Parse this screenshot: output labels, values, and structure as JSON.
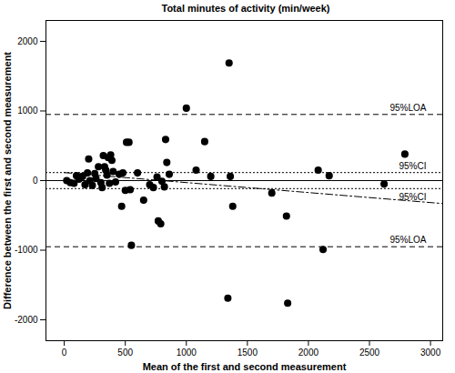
{
  "chart_data": {
    "type": "scatter",
    "title": "Total minutes of activity (min/week)",
    "x_label": "Mean of the first and second measurement",
    "y_label": "Difference between the first and second measurement",
    "x": [
      20,
      50,
      80,
      100,
      120,
      150,
      170,
      190,
      200,
      210,
      230,
      250,
      260,
      280,
      300,
      310,
      320,
      330,
      340,
      350,
      360,
      370,
      380,
      390,
      400,
      420,
      450,
      470,
      480,
      500,
      510,
      530,
      540,
      550,
      600,
      650,
      700,
      730,
      760,
      770,
      790,
      800,
      820,
      830,
      840,
      860,
      1000,
      1080,
      1150,
      1200,
      1340,
      1350,
      1360,
      1380,
      1700,
      1820,
      1830,
      2080,
      2120,
      2170,
      2620,
      2790
    ],
    "values": [
      0,
      -30,
      -40,
      70,
      20,
      60,
      -60,
      110,
      310,
      0,
      -70,
      100,
      30,
      200,
      -30,
      -100,
      360,
      200,
      150,
      80,
      330,
      -40,
      370,
      290,
      130,
      -20,
      90,
      -370,
      110,
      -140,
      550,
      550,
      -130,
      -930,
      110,
      -280,
      -60,
      -100,
      50,
      -580,
      -620,
      -10,
      -90,
      590,
      260,
      90,
      1040,
      150,
      560,
      60,
      -1690,
      1690,
      60,
      -370,
      -180,
      -510,
      -1760,
      150,
      -990,
      70,
      -50,
      380
    ],
    "color": "#000000",
    "marker": "circle",
    "reference_lines": [
      {
        "value": 950,
        "label": "95%LOA",
        "line_style": "dashed"
      },
      {
        "value": 115,
        "label": "95%CI",
        "line_style": "dotted"
      },
      {
        "value": 0,
        "line_style": "solid"
      },
      {
        "value": -115,
        "label": "95%CI",
        "line_style": "dotted"
      },
      {
        "value": -950,
        "label": "95%LOA",
        "line_style": "dashed"
      }
    ],
    "trend_line": {
      "x": [
        0,
        3100
      ],
      "values": [
        115,
        -330
      ],
      "line_style": "dashdot"
    },
    "xlim": [
      -150,
      3100
    ],
    "ylim": [
      -2300,
      2300
    ],
    "xticks": [
      0,
      500,
      1000,
      1500,
      2000,
      2500,
      3000
    ],
    "yticks": [
      -2000,
      -1000,
      0,
      1000,
      2000
    ],
    "grid": false
  }
}
